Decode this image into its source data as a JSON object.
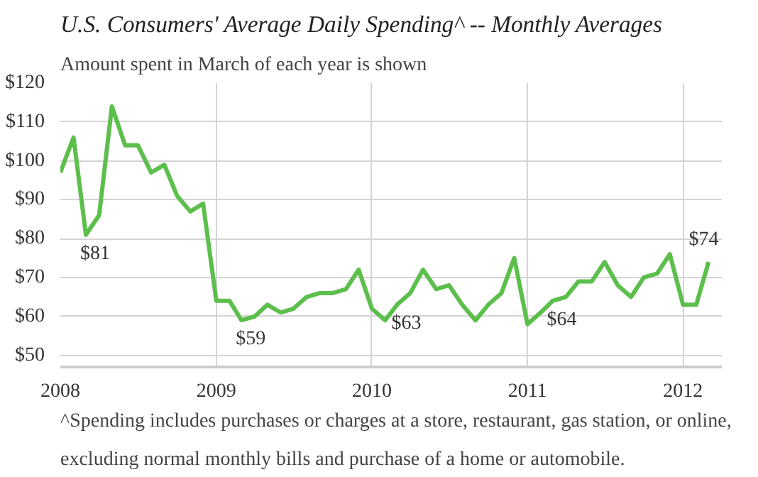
{
  "chart_data": {
    "type": "line",
    "title": "U.S. Consumers' Average Daily Spending^ -- Monthly Averages",
    "subtitle": "Amount spent in March of each year is shown",
    "x": [
      "2008-01",
      "2008-02",
      "2008-03",
      "2008-04",
      "2008-05",
      "2008-06",
      "2008-07",
      "2008-08",
      "2008-09",
      "2008-10",
      "2008-11",
      "2008-12",
      "2009-01",
      "2009-02",
      "2009-03",
      "2009-04",
      "2009-05",
      "2009-06",
      "2009-07",
      "2009-08",
      "2009-09",
      "2009-10",
      "2009-11",
      "2009-12",
      "2010-01",
      "2010-02",
      "2010-03",
      "2010-04",
      "2010-05",
      "2010-06",
      "2010-07",
      "2010-08",
      "2010-09",
      "2010-10",
      "2010-11",
      "2010-12",
      "2011-01",
      "2011-02",
      "2011-03",
      "2011-04",
      "2011-05",
      "2011-06",
      "2011-07",
      "2011-08",
      "2011-09",
      "2011-10",
      "2011-11",
      "2011-12",
      "2012-01",
      "2012-02",
      "2012-03"
    ],
    "series": [
      {
        "color": "#5cbf4b",
        "values": [
          97,
          106,
          81,
          86,
          114,
          104,
          104,
          97,
          99,
          91,
          87,
          89,
          64,
          64,
          59,
          60,
          63,
          61,
          62,
          65,
          66,
          66,
          67,
          72,
          62,
          59,
          63,
          66,
          72,
          67,
          68,
          63,
          59,
          63,
          66,
          75,
          58,
          61,
          64,
          65,
          69,
          69,
          74,
          68,
          65,
          70,
          71,
          76,
          63,
          63,
          74
        ]
      }
    ],
    "annotations": [
      {
        "text": "$81",
        "x": "2008-03",
        "y": 81
      },
      {
        "text": "$59",
        "x": "2009-03",
        "y": 59
      },
      {
        "text": "$63",
        "x": "2010-03",
        "y": 63
      },
      {
        "text": "$64",
        "x": "2011-03",
        "y": 64
      },
      {
        "text": "$74",
        "x": "2012-03",
        "y": 74
      },
      "^Spending includes purchases or charges at a store, restaurant, gas station, or online, excluding normal monthly bills and purchase of a home or automobile."
    ],
    "xlim": [
      "2008-01",
      "2012-04"
    ],
    "ylim": [
      47,
      120
    ],
    "xticks": [
      {
        "value": "2008-01",
        "label": "2008"
      },
      {
        "value": "2009-01",
        "label": "2009"
      },
      {
        "value": "2010-01",
        "label": "2010"
      },
      {
        "value": "2011-01",
        "label": "2011"
      },
      {
        "value": "2012-01",
        "label": "2012"
      }
    ],
    "yticks": [
      {
        "value": 50,
        "label": "$50"
      },
      {
        "value": 60,
        "label": "$60"
      },
      {
        "value": 70,
        "label": "$70"
      },
      {
        "value": 80,
        "label": "$80"
      },
      {
        "value": 90,
        "label": "$90"
      },
      {
        "value": 100,
        "label": "$100"
      },
      {
        "value": 110,
        "label": "$110"
      },
      {
        "value": 120,
        "label": "$120"
      }
    ],
    "grid": true,
    "marker": "none",
    "line_style": "solid"
  }
}
